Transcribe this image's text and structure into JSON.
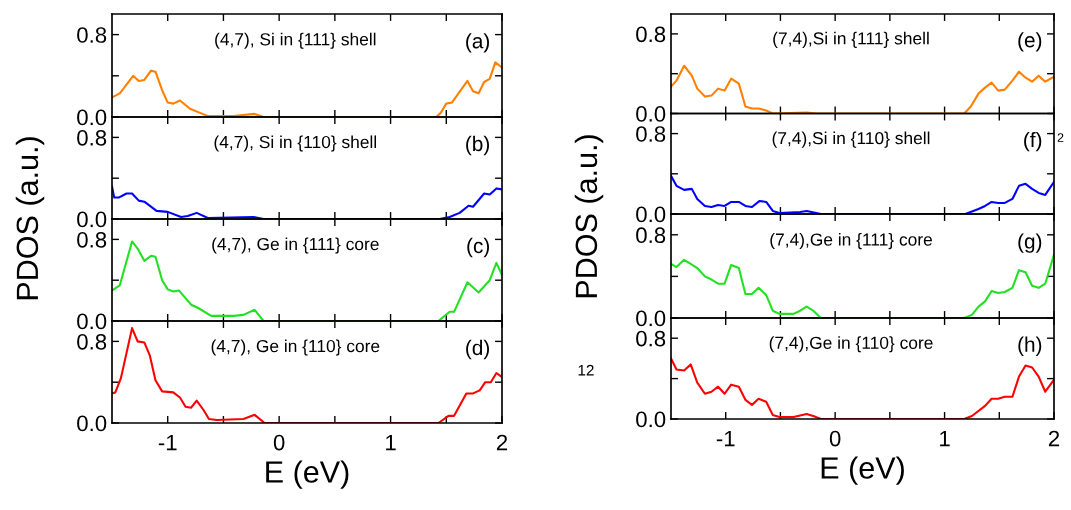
{
  "chart_data": [
    {
      "type": "line",
      "ylabel": "PDOS (a.u.)",
      "annotations": [
        "(4,7), Si in {111} shell",
        "(a)"
      ],
      "color": "#ff8000",
      "tick_labels": "y",
      "xlim": [
        -1.5,
        2
      ],
      "ylim": [
        0,
        1
      ],
      "xticks": [
        {
          "value": -1,
          "label": null
        },
        {
          "value": -0.5,
          "label": null
        },
        {
          "value": 0,
          "label": null
        },
        {
          "value": 0.5,
          "label": null
        },
        {
          "value": 1,
          "label": null
        },
        {
          "value": 1.5,
          "label": null
        },
        {
          "value": 2,
          "label": null
        }
      ],
      "yticks": [
        {
          "value": 0,
          "label": "0.0"
        },
        {
          "value": 0.4,
          "label": null
        },
        {
          "value": 0.8,
          "label": "0.8"
        }
      ],
      "x": [
        -1.5,
        -1.43,
        -1.31,
        -1.26,
        -1.21,
        -1.15,
        -1.11,
        -1.05,
        -1.0,
        -0.95,
        -0.89,
        -0.8,
        -0.71,
        -0.64,
        -0.41,
        -0.22,
        -0.14,
        1.41,
        1.45,
        1.5,
        1.55,
        1.69,
        1.74,
        1.79,
        1.84,
        1.89,
        1.94,
        2.0
      ],
      "values": [
        0.19,
        0.23,
        0.4,
        0.35,
        0.36,
        0.45,
        0.44,
        0.26,
        0.14,
        0.13,
        0.16,
        0.08,
        0.04,
        0.01,
        0.01,
        0.03,
        0,
        0,
        0.04,
        0.13,
        0.14,
        0.35,
        0.25,
        0.23,
        0.34,
        0.37,
        0.53,
        0.48
      ]
    },
    {
      "type": "line",
      "annotations": [
        "(4,7), Si in {110} shell",
        "(b)"
      ],
      "color": "#0000ff",
      "tick_labels": "y",
      "xlim": [
        -1.5,
        2
      ],
      "ylim": [
        0,
        1
      ],
      "xticks": [
        {
          "value": -1,
          "label": null
        },
        {
          "value": -0.5,
          "label": null
        },
        {
          "value": 0,
          "label": null
        },
        {
          "value": 0.5,
          "label": null
        },
        {
          "value": 1,
          "label": null
        },
        {
          "value": 1.5,
          "label": null
        },
        {
          "value": 2,
          "label": null
        }
      ],
      "yticks": [
        {
          "value": 0,
          "label": "0.0"
        },
        {
          "value": 0.4,
          "label": null
        },
        {
          "value": 0.8,
          "label": "0.8"
        }
      ],
      "x": [
        -1.5,
        -1.48,
        -1.44,
        -1.37,
        -1.32,
        -1.26,
        -1.21,
        -1.1,
        -1.0,
        -0.88,
        -0.82,
        -0.74,
        -0.64,
        -0.23,
        -0.14,
        1.44,
        1.53,
        1.62,
        1.7,
        1.74,
        1.84,
        1.89,
        1.95,
        2.0
      ],
      "values": [
        0.32,
        0.21,
        0.21,
        0.25,
        0.25,
        0.18,
        0.17,
        0.08,
        0.07,
        0.02,
        0.03,
        0.06,
        0.01,
        0.02,
        0,
        0,
        0.02,
        0.06,
        0.13,
        0.12,
        0.25,
        0.24,
        0.3,
        0.29
      ]
    },
    {
      "type": "line",
      "annotations": [
        "(4,7), Ge in {111} core",
        "(c)"
      ],
      "color": "#22e022",
      "tick_labels": "y",
      "xlim": [
        -1.5,
        2
      ],
      "ylim": [
        0,
        1
      ],
      "xticks": [
        {
          "value": -1,
          "label": null
        },
        {
          "value": -0.5,
          "label": null
        },
        {
          "value": 0,
          "label": null
        },
        {
          "value": 0.5,
          "label": null
        },
        {
          "value": 1,
          "label": null
        },
        {
          "value": 1.5,
          "label": null
        },
        {
          "value": 2,
          "label": null
        }
      ],
      "yticks": [
        {
          "value": 0,
          "label": "0.0"
        },
        {
          "value": 0.4,
          "label": null
        },
        {
          "value": 0.8,
          "label": "0.8"
        }
      ],
      "x": [
        -1.5,
        -1.43,
        -1.32,
        -1.27,
        -1.21,
        -1.15,
        -1.11,
        -1.05,
        -1.0,
        -0.95,
        -0.9,
        -0.79,
        -0.73,
        -0.61,
        -0.41,
        -0.32,
        -0.22,
        -0.14,
        1.43,
        1.53,
        1.57,
        1.69,
        1.79,
        1.89,
        1.95,
        2.0
      ],
      "values": [
        0.3,
        0.35,
        0.78,
        0.71,
        0.59,
        0.64,
        0.63,
        0.4,
        0.31,
        0.29,
        0.3,
        0.16,
        0.13,
        0.05,
        0.05,
        0.06,
        0.11,
        0,
        0,
        0.09,
        0.09,
        0.38,
        0.28,
        0.4,
        0.57,
        0.45
      ]
    },
    {
      "type": "line",
      "xlabel": "E (eV)",
      "annotations": [
        "(4,7), Ge in {110} core",
        "(d)"
      ],
      "color": "#ff0000",
      "xlim": [
        -1.5,
        2
      ],
      "ylim": [
        0,
        1
      ],
      "xticks": [
        -1,
        {
          "value": -0.5,
          "label": null
        },
        0,
        {
          "value": 0.5,
          "label": null
        },
        1,
        {
          "value": 1.5,
          "label": null
        },
        2
      ],
      "yticks": [
        {
          "value": 0,
          "label": "0.0"
        },
        {
          "value": 0.4,
          "label": null
        },
        {
          "value": 0.8,
          "label": "0.8"
        }
      ],
      "x": [
        -1.5,
        -1.47,
        -1.42,
        -1.32,
        -1.27,
        -1.21,
        -1.16,
        -1.11,
        -1.05,
        -0.95,
        -0.89,
        -0.84,
        -0.79,
        -0.74,
        -0.68,
        -0.63,
        -0.56,
        -0.32,
        -0.22,
        -0.13,
        1.43,
        1.52,
        1.57,
        1.68,
        1.74,
        1.8,
        1.85,
        1.9,
        1.95,
        2.0
      ],
      "values": [
        0.29,
        0.3,
        0.44,
        0.93,
        0.8,
        0.79,
        0.66,
        0.42,
        0.31,
        0.3,
        0.25,
        0.16,
        0.15,
        0.22,
        0.13,
        0.04,
        0.03,
        0.04,
        0.08,
        0,
        0,
        0.07,
        0.07,
        0.29,
        0.29,
        0.32,
        0.4,
        0.4,
        0.49,
        0.45
      ]
    },
    {
      "type": "line",
      "ylabel": "PDOS (a.u.)",
      "annotations": [
        "(7,4),Si in {111} shell",
        "(e)"
      ],
      "color": "#ff8000",
      "tick_labels": "y",
      "xlim": [
        -1.5,
        2
      ],
      "ylim": [
        0,
        1
      ],
      "xticks": [
        {
          "value": -1,
          "label": null
        },
        {
          "value": -0.5,
          "label": null
        },
        {
          "value": 0,
          "label": null
        },
        {
          "value": 0.5,
          "label": null
        },
        {
          "value": 1,
          "label": null
        },
        {
          "value": 1.5,
          "label": null
        },
        {
          "value": 2,
          "label": null
        }
      ],
      "yticks": [
        {
          "value": 0,
          "label": "0.0"
        },
        {
          "value": 0.4,
          "label": null
        },
        {
          "value": 0.8,
          "label": "0.8"
        }
      ],
      "x": [
        -1.5,
        -1.45,
        -1.38,
        -1.31,
        -1.26,
        -1.19,
        -1.13,
        -1.07,
        -1.01,
        -0.95,
        -0.88,
        -0.82,
        -0.76,
        -0.7,
        -0.63,
        -0.57,
        -0.26,
        -0.17,
        1.18,
        1.24,
        1.31,
        1.37,
        1.43,
        1.49,
        1.55,
        1.62,
        1.68,
        1.74,
        1.8,
        1.86,
        1.92,
        2.0
      ],
      "values": [
        0.27,
        0.33,
        0.48,
        0.38,
        0.25,
        0.17,
        0.18,
        0.25,
        0.23,
        0.35,
        0.3,
        0.07,
        0.05,
        0.05,
        0.03,
        0,
        0.01,
        0,
        0,
        0.07,
        0.2,
        0.26,
        0.31,
        0.23,
        0.24,
        0.33,
        0.42,
        0.36,
        0.32,
        0.38,
        0.32,
        0.37
      ]
    },
    {
      "type": "line",
      "annotations": [
        "(7,4),Si in {110} shell",
        "(f)",
        "2"
      ],
      "color": "#0000ff",
      "tick_labels": "y",
      "xlim": [
        -1.5,
        2
      ],
      "ylim": [
        0,
        1
      ],
      "xticks": [
        {
          "value": -1,
          "label": null
        },
        {
          "value": -0.5,
          "label": null
        },
        {
          "value": 0,
          "label": null
        },
        {
          "value": 0.5,
          "label": null
        },
        {
          "value": 1,
          "label": null
        },
        {
          "value": 1.5,
          "label": null
        },
        {
          "value": 2,
          "label": null
        }
      ],
      "yticks": [
        {
          "value": 0,
          "label": "0.0"
        },
        {
          "value": 0.4,
          "label": null
        },
        {
          "value": 0.8,
          "label": "0.8"
        }
      ],
      "x": [
        -1.5,
        -1.45,
        -1.38,
        -1.31,
        -1.26,
        -1.19,
        -1.13,
        -1.07,
        -1.01,
        -0.95,
        -0.88,
        -0.82,
        -0.76,
        -0.69,
        -0.63,
        -0.57,
        -0.51,
        -0.32,
        -0.26,
        -0.13,
        1.19,
        1.31,
        1.37,
        1.43,
        1.49,
        1.55,
        1.62,
        1.68,
        1.74,
        1.8,
        1.86,
        1.92,
        2.0
      ],
      "values": [
        0.38,
        0.28,
        0.24,
        0.25,
        0.15,
        0.08,
        0.07,
        0.09,
        0.08,
        0.12,
        0.12,
        0.08,
        0.07,
        0.13,
        0.12,
        0.03,
        0.01,
        0.02,
        0.03,
        0,
        0,
        0.05,
        0.08,
        0.12,
        0.11,
        0.11,
        0.15,
        0.28,
        0.3,
        0.25,
        0.21,
        0.19,
        0.32
      ]
    },
    {
      "type": "line",
      "annotations": [
        "(7,4),Ge in {111} core",
        "(g)"
      ],
      "color": "#22e022",
      "tick_labels": "y",
      "xlim": [
        -1.5,
        2
      ],
      "ylim": [
        0,
        1
      ],
      "xticks": [
        {
          "value": -1,
          "label": null
        },
        {
          "value": -0.5,
          "label": null
        },
        {
          "value": 0,
          "label": null
        },
        {
          "value": 0.5,
          "label": null
        },
        {
          "value": 1,
          "label": null
        },
        {
          "value": 1.5,
          "label": null
        },
        {
          "value": 2,
          "label": null
        }
      ],
      "yticks": [
        {
          "value": 0,
          "label": "0.0"
        },
        {
          "value": 0.4,
          "label": null
        },
        {
          "value": 0.8,
          "label": "0.8"
        }
      ],
      "x": [
        -1.5,
        -1.45,
        -1.38,
        -1.32,
        -1.26,
        -1.19,
        -1.13,
        -1.07,
        -1.01,
        -0.95,
        -0.88,
        -0.82,
        -0.76,
        -0.7,
        -0.63,
        -0.57,
        -0.51,
        -0.38,
        -0.32,
        -0.26,
        -0.2,
        -0.13,
        1.18,
        1.25,
        1.31,
        1.37,
        1.43,
        1.49,
        1.55,
        1.62,
        1.68,
        1.74,
        1.8,
        1.86,
        1.92,
        2.0
      ],
      "values": [
        0.52,
        0.49,
        0.56,
        0.52,
        0.48,
        0.4,
        0.37,
        0.33,
        0.33,
        0.51,
        0.48,
        0.23,
        0.23,
        0.29,
        0.22,
        0.07,
        0.04,
        0.04,
        0.07,
        0.11,
        0.07,
        0,
        0,
        0.03,
        0.11,
        0.16,
        0.26,
        0.24,
        0.25,
        0.29,
        0.46,
        0.44,
        0.31,
        0.29,
        0.33,
        0.61
      ]
    },
    {
      "type": "line",
      "xlabel": "E (eV)",
      "annotations": [
        "(7,4),Ge in {110} core",
        "(h)",
        "12"
      ],
      "color": "#ff0000",
      "xlim": [
        -1.5,
        2
      ],
      "ylim": [
        0,
        1
      ],
      "xticks": [
        -1,
        {
          "value": -0.5,
          "label": null
        },
        0,
        {
          "value": 0.5,
          "label": null
        },
        1,
        {
          "value": 1.5,
          "label": null
        },
        2
      ],
      "yticks": [
        {
          "value": 0,
          "label": "0.0"
        },
        {
          "value": 0.4,
          "label": null
        },
        {
          "value": 0.8,
          "label": "0.8"
        }
      ],
      "x": [
        -1.5,
        -1.45,
        -1.38,
        -1.32,
        -1.26,
        -1.19,
        -1.13,
        -1.07,
        -1.01,
        -0.95,
        -0.88,
        -0.82,
        -0.76,
        -0.7,
        -0.63,
        -0.57,
        -0.51,
        -0.38,
        -0.26,
        -0.2,
        -0.13,
        1.18,
        1.25,
        1.37,
        1.43,
        1.49,
        1.55,
        1.62,
        1.68,
        1.74,
        1.8,
        1.86,
        1.92,
        2.0
      ],
      "values": [
        0.6,
        0.49,
        0.48,
        0.54,
        0.36,
        0.25,
        0.27,
        0.32,
        0.25,
        0.34,
        0.32,
        0.19,
        0.14,
        0.2,
        0.17,
        0.04,
        0.02,
        0.02,
        0.05,
        0.03,
        0,
        0,
        0.03,
        0.13,
        0.2,
        0.2,
        0.22,
        0.22,
        0.42,
        0.53,
        0.51,
        0.42,
        0.27,
        0.39
      ]
    }
  ]
}
